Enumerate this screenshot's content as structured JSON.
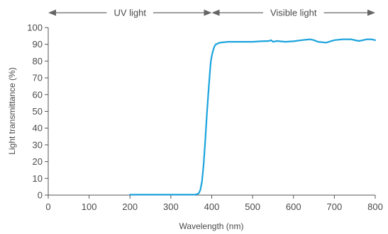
{
  "chart_data": {
    "type": "line",
    "xlabel": "Wavelength (nm)",
    "ylabel": "Light transmittance (%)",
    "xlim": [
      0,
      800
    ],
    "ylim": [
      0,
      100
    ],
    "xticks": [
      0,
      100,
      200,
      300,
      400,
      500,
      600,
      700,
      800
    ],
    "yticks": [
      0,
      10,
      20,
      30,
      40,
      50,
      60,
      70,
      80,
      90,
      100
    ],
    "grid": false,
    "bands": [
      {
        "label": "UV light",
        "range": [
          0,
          400
        ]
      },
      {
        "label": "Visible light",
        "range": [
          400,
          800
        ]
      }
    ],
    "series": [
      {
        "color": "#1ba3dd",
        "x": [
          200,
          250,
          300,
          360,
          368,
          372,
          376,
          380,
          384,
          388,
          392,
          396,
          398,
          400,
          403,
          406,
          410,
          420,
          440,
          460,
          480,
          500,
          520,
          540,
          545,
          550,
          560,
          580,
          600,
          620,
          640,
          650,
          660,
          680,
          700,
          720,
          740,
          760,
          780,
          790,
          800
        ],
        "y": [
          0.3,
          0.3,
          0.3,
          0.3,
          1,
          3,
          8,
          18,
          32,
          48,
          62,
          75,
          80,
          83,
          86,
          88.5,
          90,
          91,
          91.5,
          91.5,
          91.5,
          91.5,
          91.8,
          92,
          92.5,
          91.5,
          92,
          91.5,
          91.8,
          92.5,
          93,
          92.5,
          91.5,
          91,
          92.5,
          93,
          93,
          92,
          93,
          93,
          92.5
        ]
      }
    ]
  }
}
